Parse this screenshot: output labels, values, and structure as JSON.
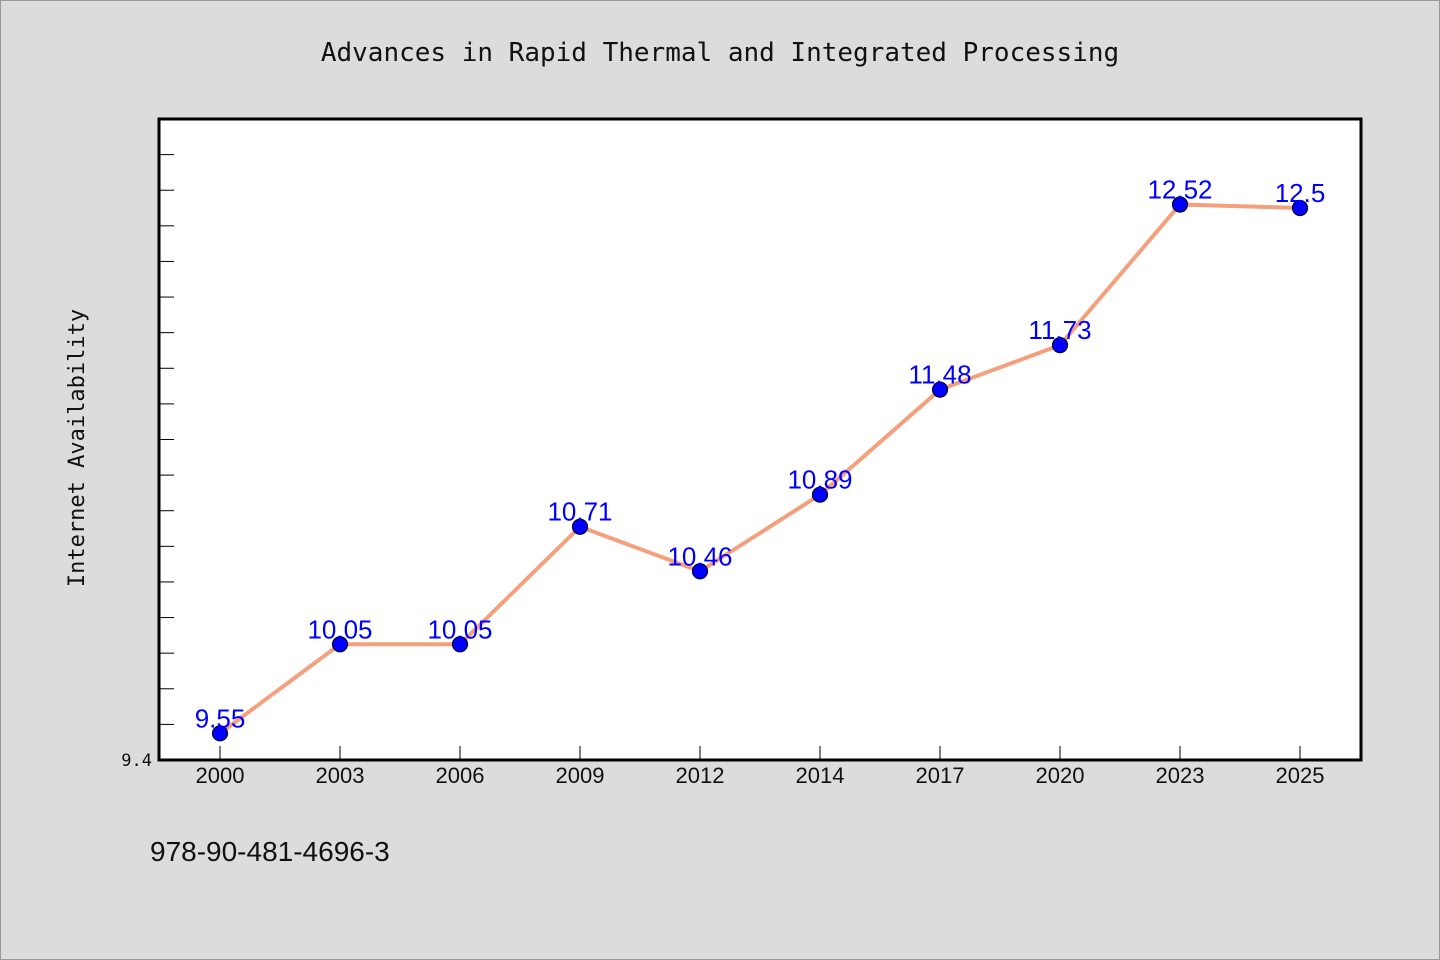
{
  "chart_data": {
    "type": "line",
    "title": "Advances in Rapid Thermal and Integrated Processing",
    "ylabel": "Internet Availability",
    "xlabel": "",
    "categories": [
      "2000",
      "2003",
      "2006",
      "2009",
      "2012",
      "2014",
      "2017",
      "2020",
      "2023",
      "2025"
    ],
    "series": [
      {
        "values": [
          9.55,
          10.05,
          10.05,
          10.71,
          10.46,
          10.89,
          11.48,
          11.73,
          12.52,
          12.5
        ],
        "data_labels": [
          "9.55",
          "10.05",
          "10.05",
          "10.71",
          "10.46",
          "10.89",
          "11.48",
          "11.73",
          "12.52",
          "12.5"
        ]
      }
    ],
    "ylim": [
      9.4,
      13.0
    ],
    "y_tick_labels": [
      "9.4"
    ],
    "grid": false,
    "line_color": "#f4a07c",
    "marker_color": "#0000ff",
    "label_color": "#0000ff",
    "plot_background": "#ffffff",
    "page_background": "#dcdcdc"
  },
  "footnote": "978-90-481-4696-3"
}
